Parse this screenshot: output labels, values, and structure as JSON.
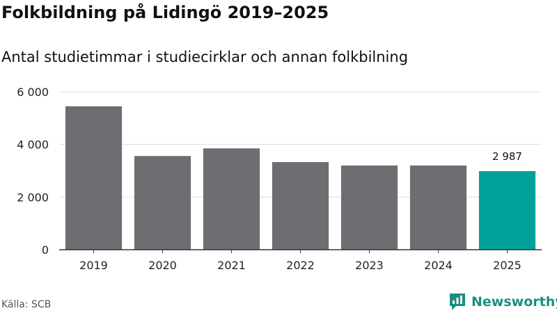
{
  "title": "Folkbildning på Lidingö 2019–2025",
  "subtitle": "Antal studietimmar i studiecirklar och annan folkbilning",
  "source": "Källa: SCB",
  "brand": {
    "name": "Newsworthy",
    "icon": "newsworthy-logo-icon"
  },
  "colors": {
    "bar": "#6e6d72",
    "highlight": "#00a19a",
    "grid": "#dddddd",
    "axis": "#333333"
  },
  "chart_data": {
    "type": "bar",
    "title": "Folkbildning på Lidingö 2019–2025",
    "subtitle": "Antal studietimmar i studiecirklar och annan folkbilning",
    "xlabel": "",
    "ylabel": "",
    "categories": [
      "2019",
      "2020",
      "2021",
      "2022",
      "2023",
      "2024",
      "2025"
    ],
    "values": [
      5450,
      3560,
      3850,
      3330,
      3200,
      3200,
      2987
    ],
    "highlight_index": 6,
    "data_labels": [
      {
        "index": 6,
        "text": "2 987"
      }
    ],
    "yticks": [
      0,
      2000,
      4000,
      6000
    ],
    "ytick_labels": [
      "0",
      "2 000",
      "4 000",
      "6 000"
    ],
    "ylim": [
      0,
      6000
    ],
    "grid": true,
    "legend": "none"
  }
}
